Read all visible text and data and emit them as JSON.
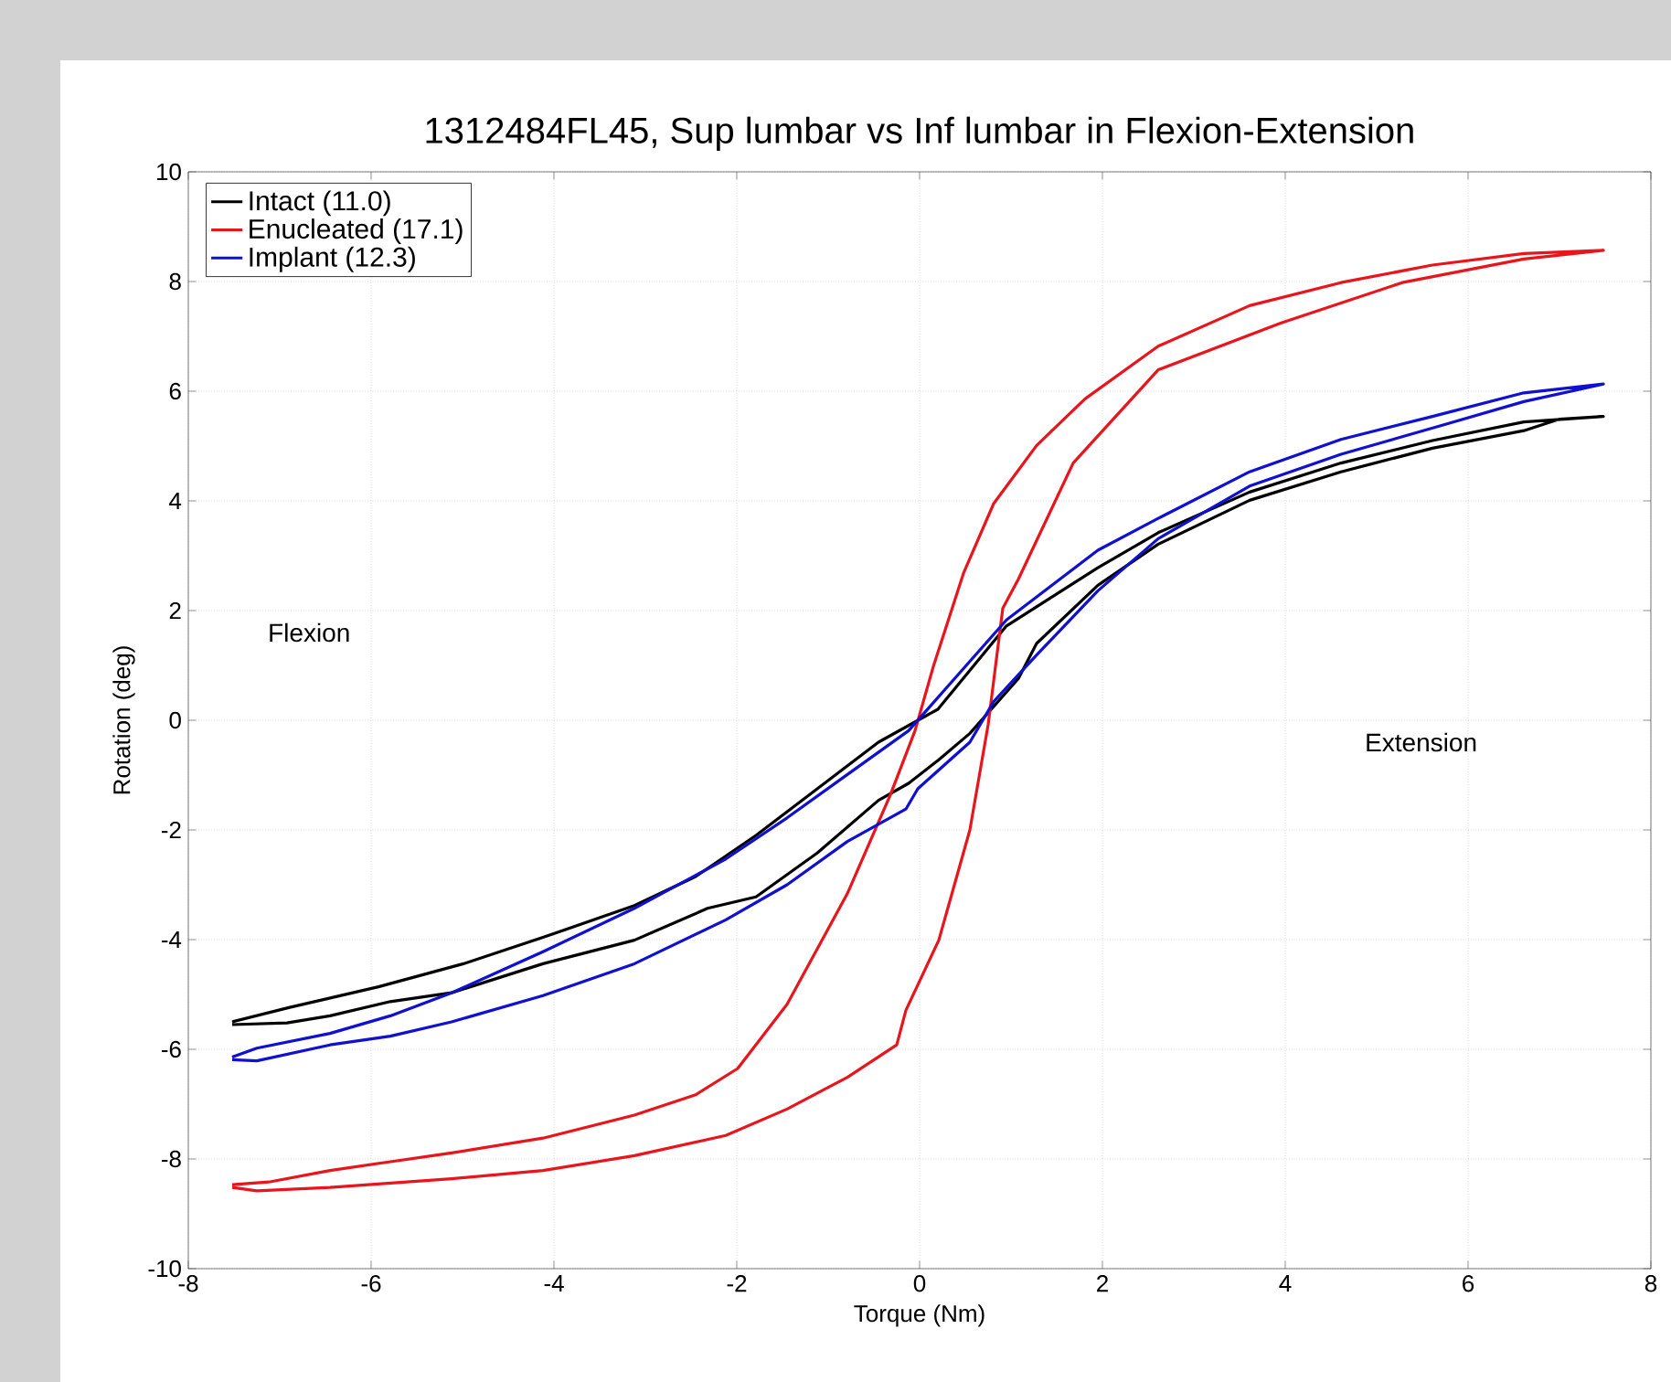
{
  "chart_data": {
    "type": "line",
    "title": "1312484FL45, Sup lumbar vs Inf lumbar in Flexion-Extension",
    "xlabel": "Torque (Nm)",
    "ylabel": "Rotation (deg)",
    "xlim": [
      -8,
      8
    ],
    "ylim": [
      -10,
      10
    ],
    "xticks": [
      -8,
      -6,
      -4,
      -2,
      0,
      2,
      4,
      6,
      8
    ],
    "yticks": [
      -10,
      -8,
      -6,
      -4,
      -2,
      0,
      2,
      4,
      6,
      8,
      10
    ],
    "grid": true,
    "legend": "top left",
    "annotations": [
      "Flexion",
      "Extension"
    ],
    "series": [
      {
        "name": "Intact (11.0)",
        "color": "#000000",
        "x": [
          -7.52,
          -6.92,
          -6.45,
          -5.79,
          -5.12,
          -4.12,
          -3.12,
          -2.32,
          -1.79,
          -1.12,
          -0.45,
          -0.12,
          0.21,
          0.55,
          1.08,
          1.28,
          1.95,
          2.61,
          3.61,
          4.61,
          5.61,
          6.61,
          7.0,
          7.48,
          6.61,
          5.61,
          4.61,
          3.61,
          2.61,
          1.95,
          0.95,
          0.2,
          -0.45,
          -1.12,
          -1.79,
          -2.45,
          -3.12,
          -4.12,
          -4.99,
          -5.92,
          -6.9,
          -7.52
        ],
        "values": [
          -5.55,
          -5.52,
          -5.39,
          -5.13,
          -4.97,
          -4.44,
          -4.01,
          -3.43,
          -3.22,
          -2.42,
          -1.46,
          -1.15,
          -0.72,
          -0.24,
          0.76,
          1.4,
          2.46,
          3.21,
          4.01,
          4.53,
          4.96,
          5.28,
          5.49,
          5.54,
          5.44,
          5.1,
          4.69,
          4.16,
          3.42,
          2.78,
          1.72,
          0.2,
          -0.4,
          -1.25,
          -2.1,
          -2.85,
          -3.38,
          -3.96,
          -4.44,
          -4.86,
          -5.24,
          -5.5
        ]
      },
      {
        "name": "Enucleated (17.1)",
        "color": "#e8161c",
        "x": [
          -7.52,
          -7.25,
          -6.45,
          -5.12,
          -4.12,
          -3.12,
          -2.12,
          -1.45,
          -0.79,
          -0.25,
          -0.15,
          0.21,
          0.55,
          0.75,
          0.91,
          1.08,
          1.68,
          2.61,
          3.95,
          5.28,
          6.61,
          7.48,
          6.61,
          5.61,
          4.61,
          3.61,
          2.61,
          1.81,
          1.28,
          0.81,
          0.48,
          0.15,
          -0.05,
          -0.32,
          -0.79,
          -1.45,
          -1.99,
          -2.45,
          -3.12,
          -4.12,
          -5.12,
          -5.79,
          -6.45,
          -7.12,
          -7.52
        ],
        "values": [
          -8.52,
          -8.58,
          -8.52,
          -8.36,
          -8.21,
          -7.94,
          -7.57,
          -7.09,
          -6.51,
          -5.92,
          -5.29,
          -4.01,
          -2.0,
          -0.08,
          2.04,
          2.57,
          4.69,
          6.39,
          7.24,
          7.98,
          8.41,
          8.57,
          8.51,
          8.3,
          7.98,
          7.56,
          6.82,
          5.86,
          5.01,
          3.95,
          2.68,
          0.98,
          -0.19,
          -1.36,
          -3.16,
          -5.18,
          -6.35,
          -6.83,
          -7.2,
          -7.62,
          -7.89,
          -8.05,
          -8.21,
          -8.42,
          -8.47
        ]
      },
      {
        "name": "Implant (12.3)",
        "color": "#1010d0",
        "x": [
          -7.52,
          -7.25,
          -6.45,
          -5.79,
          -5.12,
          -4.12,
          -3.12,
          -2.12,
          -1.45,
          -0.79,
          -0.15,
          -0.02,
          0.55,
          0.81,
          1.28,
          1.95,
          2.61,
          3.61,
          4.61,
          5.7,
          6.61,
          7.48,
          6.61,
          5.61,
          4.61,
          3.61,
          2.61,
          1.95,
          0.95,
          -0.12,
          -0.79,
          -1.45,
          -2.12,
          -3.12,
          -4.12,
          -5.12,
          -5.79,
          -6.45,
          -7.25,
          -7.52
        ],
        "values": [
          -6.19,
          -6.21,
          -5.92,
          -5.76,
          -5.5,
          -5.02,
          -4.44,
          -3.64,
          -3.0,
          -2.21,
          -1.62,
          -1.25,
          -0.4,
          0.34,
          1.19,
          2.36,
          3.31,
          4.27,
          4.85,
          5.37,
          5.81,
          6.13,
          5.97,
          5.54,
          5.12,
          4.53,
          3.68,
          3.1,
          1.83,
          -0.19,
          -0.99,
          -1.78,
          -2.53,
          -3.43,
          -4.22,
          -4.97,
          -5.39,
          -5.71,
          -5.98,
          -6.14
        ]
      }
    ]
  }
}
